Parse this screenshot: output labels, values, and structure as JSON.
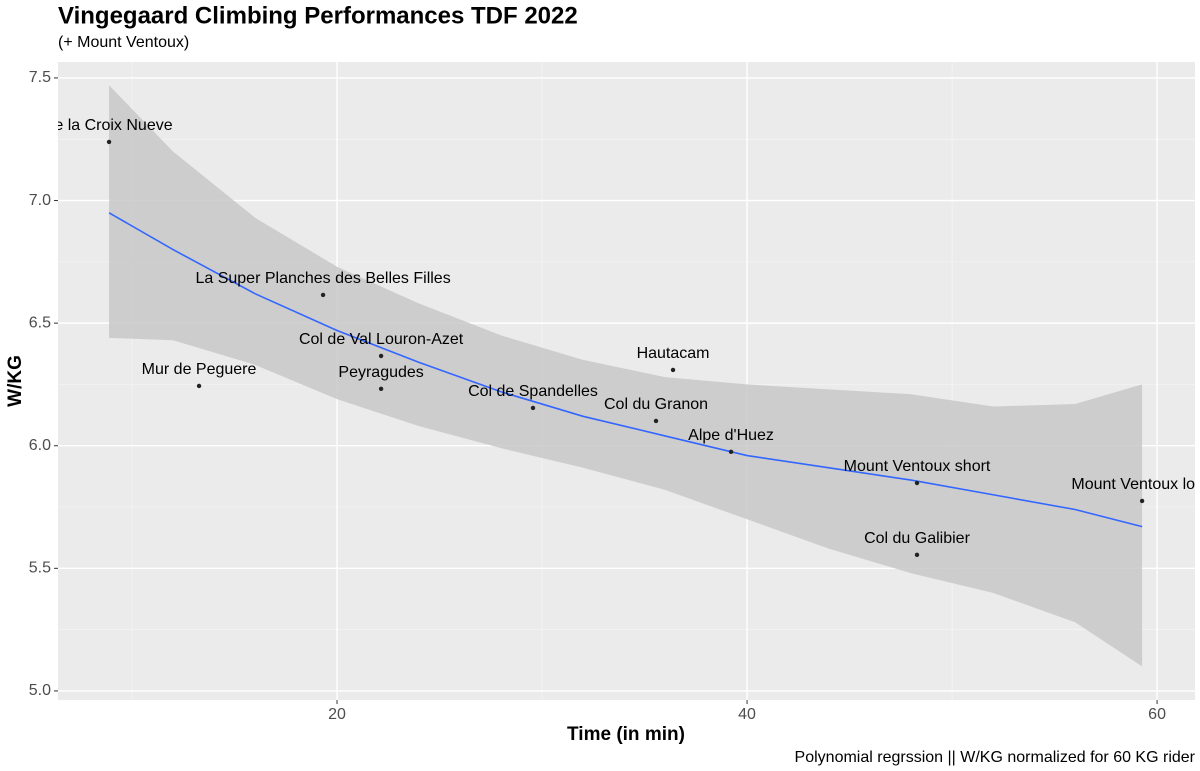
{
  "chart_data": {
    "type": "scatter",
    "title": "Vingegaard Climbing Performances TDF 2022",
    "subtitle": "(+ Mount Ventoux)",
    "x_label": "Time (in min)",
    "y_label": "W/KG",
    "caption": "Polynomial regrssion || W/KG normalized for 60 KG rider",
    "xlim": [
      6.39,
      61.85
    ],
    "ylim": [
      4.963,
      7.565
    ],
    "xticks": [
      20,
      40,
      60
    ],
    "yticks": [
      {
        "value": 5,
        "label": "5.0"
      },
      5.5,
      {
        "value": 6,
        "label": "6.0"
      },
      6.5,
      {
        "value": 7,
        "label": "7.0"
      },
      7.5
    ],
    "xminor": [
      10,
      30,
      50
    ],
    "yminor": [
      5.25,
      5.75,
      6.25,
      6.75,
      7.25
    ],
    "grid": true,
    "points": {
      "color": "#222222",
      "labels": [
        "de la Croix Nueve",
        "La Super Planches des Belles Filles",
        "Col de Val Louron-Azet",
        "Mur de Peguere",
        "Peyragudes",
        "Col de Spandelles",
        "Hautacam",
        "Col du Granon",
        "Alpe d'Huez",
        "Mount Ventoux short",
        "Col du Galibier",
        "Mount Ventoux long"
      ],
      "x": [
        8.88,
        19.32,
        22.15,
        13.27,
        22.15,
        29.56,
        36.39,
        35.56,
        39.22,
        48.29,
        48.29,
        59.27
      ],
      "values": [
        7.239,
        6.615,
        6.366,
        6.244,
        6.232,
        6.154,
        6.309,
        6.101,
        5.975,
        5.848,
        5.555,
        5.775
      ]
    },
    "fit": {
      "color": "#3366ff",
      "band_color": "#c8c8c8",
      "x": [
        8.88,
        12,
        16,
        20,
        24,
        28,
        32,
        36,
        40,
        44,
        48,
        52,
        56,
        59.27
      ],
      "values": [
        6.95,
        6.8,
        6.62,
        6.47,
        6.34,
        6.22,
        6.12,
        6.04,
        5.96,
        5.91,
        5.86,
        5.8,
        5.74,
        5.67
      ],
      "upper": [
        7.47,
        7.2,
        6.93,
        6.73,
        6.58,
        6.45,
        6.35,
        6.28,
        6.25,
        6.23,
        6.21,
        6.16,
        6.17,
        6.25
      ],
      "lower": [
        6.44,
        6.43,
        6.33,
        6.19,
        6.08,
        5.99,
        5.91,
        5.82,
        5.7,
        5.58,
        5.48,
        5.4,
        5.28,
        5.1
      ]
    }
  }
}
